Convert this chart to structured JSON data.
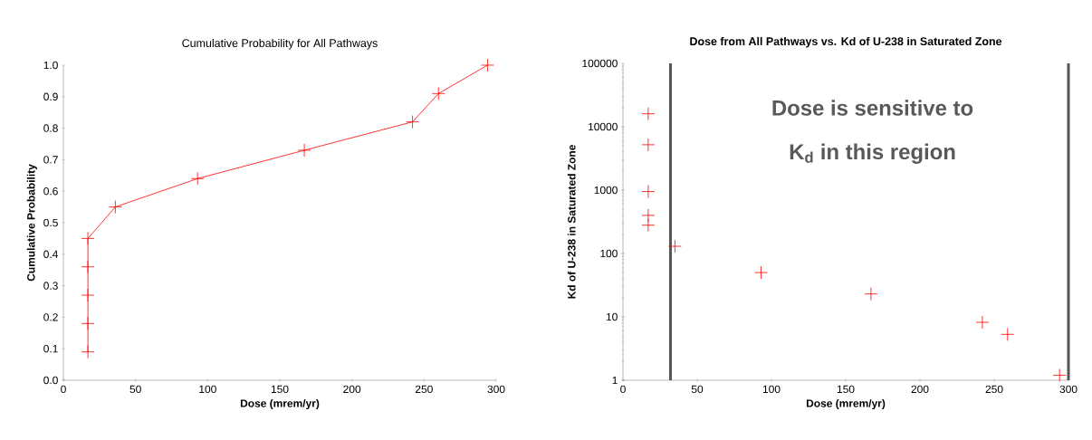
{
  "chart_data": [
    {
      "type": "line",
      "title": "Cumulative Probability for All Pathways",
      "xlabel": "Dose (mrem/yr)",
      "ylabel": "Cumulative Probability",
      "x": [
        17,
        17,
        17,
        17,
        17,
        36,
        93,
        167,
        242,
        260,
        294
      ],
      "values": [
        0.09,
        0.18,
        0.27,
        0.36,
        0.45,
        0.55,
        0.64,
        0.73,
        0.82,
        0.91,
        1.0
      ],
      "color": "#ff0000",
      "marker": "cross",
      "xlim": [
        0,
        300
      ],
      "ylim": [
        0,
        1
      ],
      "xticks": [
        0,
        50,
        100,
        150,
        200,
        250,
        300
      ],
      "yticks": [
        {
          "value": 0,
          "label": "0.0"
        },
        0.1,
        0.2,
        0.3,
        0.4,
        0.5,
        0.6,
        0.7,
        0.8,
        0.9,
        {
          "value": 1,
          "label": "1.0"
        }
      ]
    },
    {
      "type": "scatter",
      "title": "Dose from All Pathways vs. Kd of U-238 in Saturated Zone",
      "xlabel": "Dose (mrem/yr)",
      "ylabel": "Kd of U-238 in Saturated Zone",
      "x": [
        17,
        17,
        17,
        17,
        17,
        35,
        93,
        167,
        242,
        259,
        294
      ],
      "values": [
        16000,
        5200,
        950,
        400,
        280,
        130,
        50,
        23,
        8.2,
        5.3,
        1.2
      ],
      "color": "#ff0000",
      "marker": "cross",
      "log": "y",
      "xlim": [
        0,
        300
      ],
      "ylim": [
        1,
        100000
      ],
      "xticks": [
        0,
        50,
        100,
        150,
        200,
        250,
        300
      ],
      "yticks": [
        1,
        10,
        100,
        1000,
        10000,
        100000
      ],
      "ref_lines": [
        {
          "axis": "x",
          "value": 32,
          "color": "#555555"
        },
        {
          "axis": "x",
          "value": 300,
          "color": "#555555"
        }
      ],
      "annotations": [
        "Dose is sensitive to",
        "K$_{d}$ in this region"
      ]
    }
  ]
}
